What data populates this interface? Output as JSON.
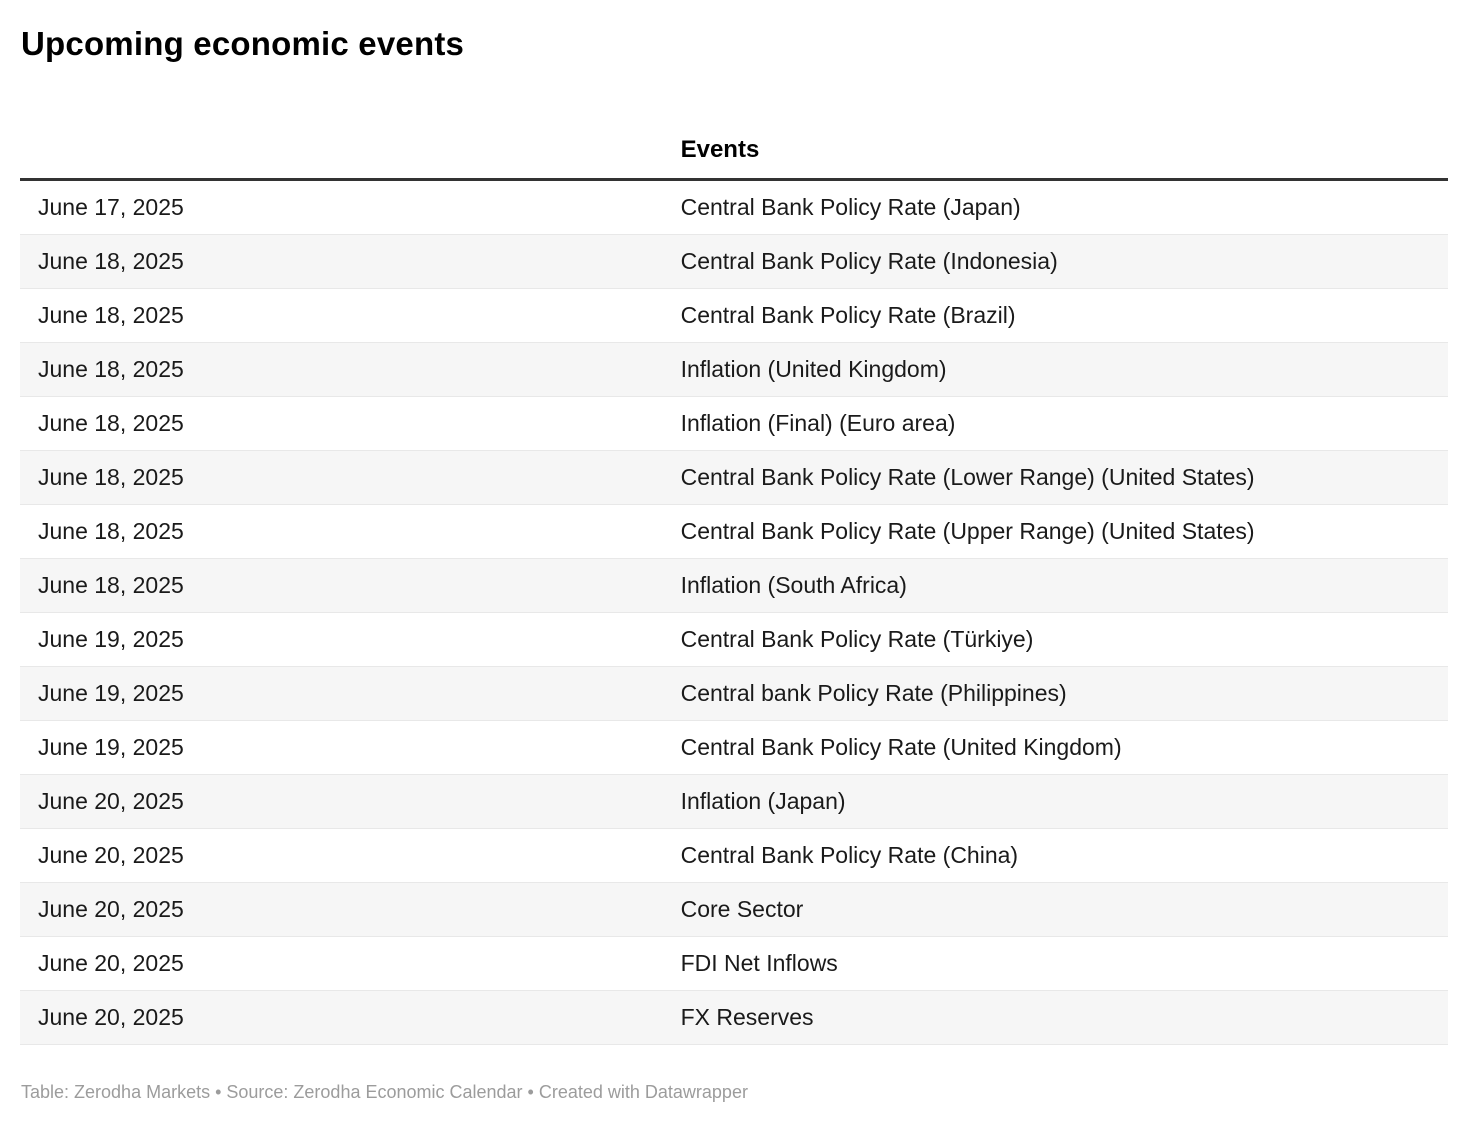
{
  "page": {
    "title": "Upcoming economic events",
    "footer": "Table: Zerodha Markets • Source: Zerodha Economic Calendar • Created with Datawrapper"
  },
  "chart_data": {
    "type": "table",
    "title": "Upcoming economic events",
    "columns": [
      "",
      "Events"
    ],
    "rows": [
      {
        "date": "June 17, 2025",
        "event": "Central Bank Policy Rate (Japan)"
      },
      {
        "date": "June 18, 2025",
        "event": "Central Bank Policy Rate (Indonesia)"
      },
      {
        "date": "June 18, 2025",
        "event": "Central Bank Policy Rate (Brazil)"
      },
      {
        "date": "June 18, 2025",
        "event": "Inflation (United Kingdom)"
      },
      {
        "date": "June 18, 2025",
        "event": "Inflation (Final) (Euro area)"
      },
      {
        "date": "June 18, 2025",
        "event": "Central Bank Policy Rate (Lower Range) (United States)"
      },
      {
        "date": "June 18, 2025",
        "event": "Central Bank Policy Rate (Upper Range) (United States)"
      },
      {
        "date": "June 18, 2025",
        "event": "Inflation (South Africa)"
      },
      {
        "date": "June 19, 2025",
        "event": "Central Bank Policy Rate (Türkiye)"
      },
      {
        "date": "June 19, 2025",
        "event": "Central bank Policy Rate (Philippines)"
      },
      {
        "date": "June 19, 2025",
        "event": "Central Bank Policy Rate (United Kingdom)"
      },
      {
        "date": "June 20, 2025",
        "event": "Inflation (Japan)"
      },
      {
        "date": "June 20, 2025",
        "event": "Central Bank Policy Rate (China)"
      },
      {
        "date": "June 20, 2025",
        "event": "Core Sector"
      },
      {
        "date": "June 20, 2025",
        "event": "FDI Net Inflows"
      },
      {
        "date": "June 20, 2025",
        "event": "FX Reserves"
      }
    ],
    "layout_hints": {
      "striped_rows": true,
      "stripe_starts_on_row": 2,
      "header_rule": "thick dark line under header",
      "grid": "horizontal row separators only"
    }
  },
  "table": {
    "date_header": "",
    "events_header": "Events"
  },
  "colors": {
    "body_text": "#1a1a1a",
    "title_text": "#000000",
    "header_rule": "#333333",
    "row_border": "#e8e8e8",
    "row_stripe": "#f6f6f6",
    "footer_text": "#9c9c9c",
    "background": "#ffffff"
  }
}
